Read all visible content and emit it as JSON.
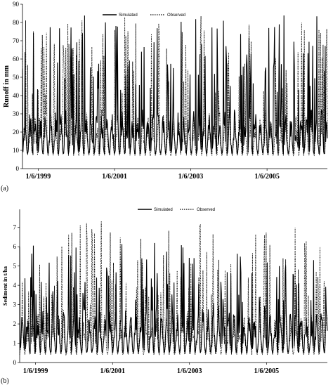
{
  "chart_data": [
    {
      "type": "line",
      "panel_label": "(a)",
      "ylabel": "Runoff in mm",
      "xlabel": "",
      "ylim": [
        0,
        90
      ],
      "yticks": [
        0,
        10,
        20,
        30,
        40,
        50,
        60,
        70,
        80,
        90
      ],
      "x_range": [
        "1999-01-01",
        "2006-12-31"
      ],
      "xtick_labels": [
        "1/6/1999",
        "1/6/2001",
        "1/6/2003",
        "1/6/2005"
      ],
      "xtick_dates": [
        "1999-06-01",
        "2001-06-01",
        "2003-06-01",
        "2005-06-01"
      ],
      "legend": {
        "placement": "top-center"
      },
      "series": [
        {
          "name": "Simulated",
          "style": "solid",
          "seed": 11,
          "base": 8,
          "mid": 25,
          "peak_range": [
            42,
            84
          ]
        },
        {
          "name": "Observed",
          "style": "dotted",
          "seed": 29,
          "base": 7,
          "mid": 24,
          "peak_range": [
            40,
            84
          ]
        }
      ]
    },
    {
      "type": "line",
      "panel_label": "(b)",
      "ylabel": "Sediment in t/ha",
      "xlabel": "",
      "ylim": [
        0,
        7.5
      ],
      "yticks": [
        0,
        1,
        2,
        3,
        4,
        5,
        6,
        7
      ],
      "x_range": [
        "1999-01-01",
        "2006-12-31"
      ],
      "xtick_labels": [
        "1/6/1999",
        "1/6/2001",
        "1/6/2003",
        "1/6/2005"
      ],
      "xtick_dates": [
        "1999-06-01",
        "2001-06-01",
        "2003-06-01",
        "2005-06-01"
      ],
      "legend": {
        "placement": "top-center"
      },
      "series": [
        {
          "name": "Simulated",
          "style": "solid",
          "seed": 47,
          "base": 0.5,
          "mid": 2.2,
          "peak_range": [
            3.0,
            6.2
          ]
        },
        {
          "name": "Observed",
          "style": "dotted",
          "seed": 83,
          "base": 0.4,
          "mid": 2.0,
          "peak_range": [
            3.0,
            7.4
          ]
        }
      ]
    }
  ]
}
